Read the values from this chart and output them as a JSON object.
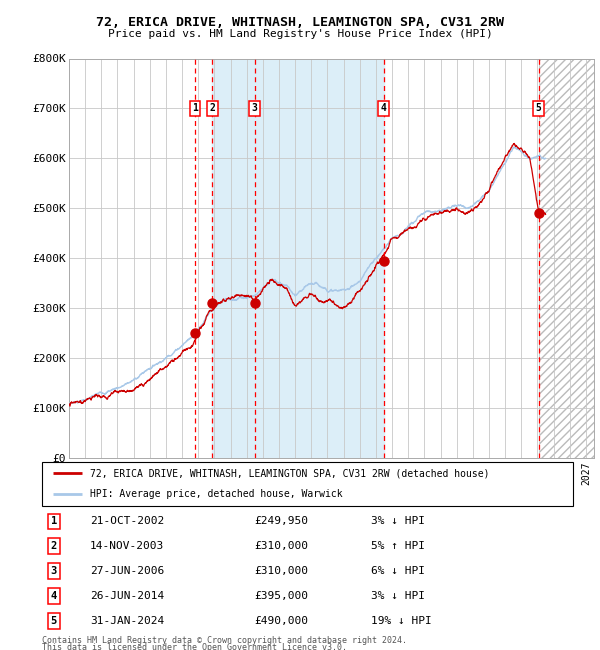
{
  "title1": "72, ERICA DRIVE, WHITNASH, LEAMINGTON SPA, CV31 2RW",
  "title2": "Price paid vs. HM Land Registry's House Price Index (HPI)",
  "ylim": [
    0,
    800000
  ],
  "yticks": [
    0,
    100000,
    200000,
    300000,
    400000,
    500000,
    600000,
    700000,
    800000
  ],
  "ytick_labels": [
    "£0",
    "£100K",
    "£200K",
    "£300K",
    "£400K",
    "£500K",
    "£600K",
    "£700K",
    "£800K"
  ],
  "xlim_start": 1995.0,
  "xlim_end": 2027.5,
  "hpi_color": "#a8c8e8",
  "price_color": "#cc0000",
  "grid_color": "#c8c8c8",
  "sale_points": [
    {
      "label": "1",
      "year": 2002.8,
      "price": 249950,
      "date": "21-OCT-2002",
      "amount": "£249,950",
      "pct": "3%",
      "dir": "↓"
    },
    {
      "label": "2",
      "year": 2003.87,
      "price": 310000,
      "date": "14-NOV-2003",
      "amount": "£310,000",
      "pct": "5%",
      "dir": "↑"
    },
    {
      "label": "3",
      "year": 2006.5,
      "price": 310000,
      "date": "27-JUN-2006",
      "amount": "£310,000",
      "pct": "6%",
      "dir": "↓"
    },
    {
      "label": "4",
      "year": 2014.48,
      "price": 395000,
      "date": "26-JUN-2014",
      "amount": "£395,000",
      "pct": "3%",
      "dir": "↓"
    },
    {
      "label": "5",
      "year": 2024.08,
      "price": 490000,
      "date": "31-JAN-2024",
      "amount": "£490,000",
      "pct": "19%",
      "dir": "↓"
    }
  ],
  "legend_red_label": "72, ERICA DRIVE, WHITNASH, LEAMINGTON SPA, CV31 2RW (detached house)",
  "legend_blue_label": "HPI: Average price, detached house, Warwick",
  "footnote1": "Contains HM Land Registry data © Crown copyright and database right 2024.",
  "footnote2": "This data is licensed under the Open Government Licence v3.0.",
  "hatch_start": 2024.08,
  "shaded_start": 2003.87,
  "shaded_end": 2014.48
}
